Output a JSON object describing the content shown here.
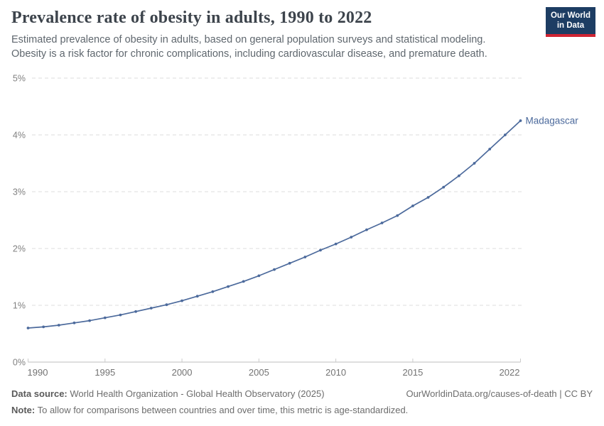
{
  "header": {
    "title": "Prevalence rate of obesity in adults, 1990 to 2022",
    "subtitle_line1": "Estimated prevalence of obesity in adults, based on general population surveys and statistical modeling.",
    "subtitle_line2": "Obesity is a risk factor for chronic complications, including cardiovascular disease, and premature death.",
    "logo": {
      "line1": "Our World",
      "line2": "in Data",
      "background_color": "#1d3d63",
      "bar_color": "#cf2433"
    }
  },
  "chart_data": {
    "type": "line",
    "title": "Prevalence rate of obesity in adults, 1990 to 2022",
    "xlabel": "",
    "ylabel": "",
    "xlim": [
      1990,
      2022
    ],
    "ylim": [
      0,
      5
    ],
    "grid": "horizontal dashed gridlines",
    "legend_position": "end-of-line label",
    "x": [
      1990,
      1991,
      1992,
      1993,
      1994,
      1995,
      1996,
      1997,
      1998,
      1999,
      2000,
      2001,
      2002,
      2003,
      2004,
      2005,
      2006,
      2007,
      2008,
      2009,
      2010,
      2011,
      2012,
      2013,
      2014,
      2015,
      2016,
      2017,
      2018,
      2019,
      2020,
      2021,
      2022
    ],
    "series": [
      {
        "name": "Madagascar",
        "color": "#4c6a9c",
        "values": [
          0.6,
          0.62,
          0.65,
          0.69,
          0.73,
          0.78,
          0.83,
          0.89,
          0.95,
          1.01,
          1.08,
          1.16,
          1.24,
          1.33,
          1.42,
          1.52,
          1.63,
          1.74,
          1.85,
          1.97,
          2.08,
          2.2,
          2.33,
          2.45,
          2.58,
          2.75,
          2.9,
          3.08,
          3.28,
          3.5,
          3.75,
          4.0,
          4.25
        ]
      }
    ],
    "x_ticks": [
      1990,
      1995,
      2000,
      2005,
      2010,
      2015,
      2022
    ],
    "y_ticks": [
      "0%",
      "1%",
      "2%",
      "3%",
      "4%",
      "5%"
    ]
  },
  "footer": {
    "source_label": "Data source:",
    "source": "World Health Organization - Global Health Observatory (2025)",
    "link": "OurWorldinData.org/causes-of-death | CC BY",
    "note_label": "Note:",
    "note": "To allow for comparisons between countries and over time, this metric is age-standardized."
  }
}
